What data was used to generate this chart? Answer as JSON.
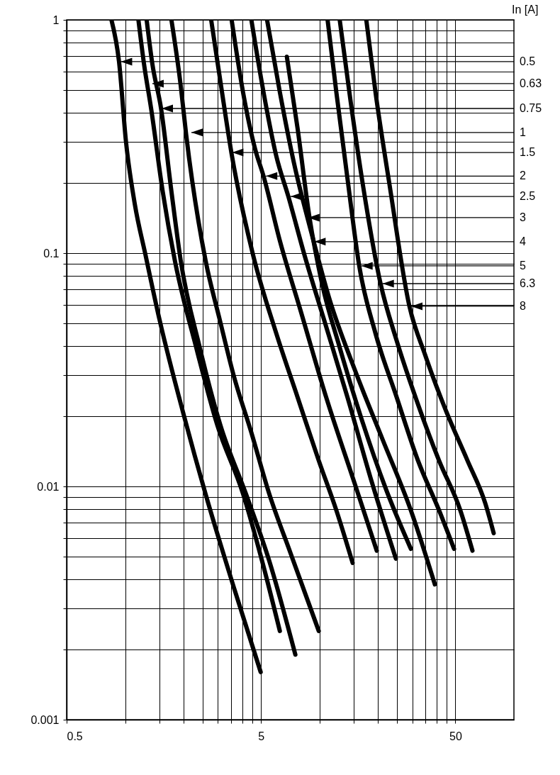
{
  "chart_data": {
    "type": "line",
    "log": "xy",
    "grid": true,
    "xlim": [
      0.5,
      100
    ],
    "ylim": [
      0.001,
      1
    ],
    "xticks": [
      0.5,
      {
        "value": 1,
        "label": null
      },
      {
        "value": 1.5,
        "label": null
      },
      {
        "value": 2,
        "label": null
      },
      {
        "value": 2.5,
        "label": null
      },
      {
        "value": 3,
        "label": null
      },
      {
        "value": 3.5,
        "label": null
      },
      {
        "value": 4,
        "label": null
      },
      {
        "value": 4.5,
        "label": null
      },
      5,
      {
        "value": 10,
        "label": null
      },
      {
        "value": 15,
        "label": null
      },
      {
        "value": 20,
        "label": null
      },
      {
        "value": 25,
        "label": null
      },
      {
        "value": 30,
        "label": null
      },
      {
        "value": 35,
        "label": null
      },
      {
        "value": 40,
        "label": null
      },
      {
        "value": 45,
        "label": null
      },
      50
    ],
    "yticks": [
      0.001,
      {
        "value": 0.002,
        "label": null
      },
      {
        "value": 0.003,
        "label": null
      },
      {
        "value": 0.004,
        "label": null
      },
      {
        "value": 0.005,
        "label": null
      },
      {
        "value": 0.006,
        "label": null
      },
      {
        "value": 0.007,
        "label": null
      },
      {
        "value": 0.008,
        "label": null
      },
      {
        "value": 0.009,
        "label": null
      },
      0.01,
      {
        "value": 0.02,
        "label": null
      },
      {
        "value": 0.03,
        "label": null
      },
      {
        "value": 0.04,
        "label": null
      },
      {
        "value": 0.05,
        "label": null
      },
      {
        "value": 0.06,
        "label": null
      },
      {
        "value": 0.07,
        "label": null
      },
      {
        "value": 0.08,
        "label": null
      },
      {
        "value": 0.09,
        "label": null
      },
      0.1,
      {
        "value": 0.2,
        "label": null
      },
      {
        "value": 0.3,
        "label": null
      },
      {
        "value": 0.4,
        "label": null
      },
      {
        "value": 0.5,
        "label": null
      },
      {
        "value": 0.6,
        "label": null
      },
      {
        "value": 0.7,
        "label": null
      },
      {
        "value": 0.8,
        "label": null
      },
      {
        "value": 0.9,
        "label": null
      },
      1
    ],
    "series": [
      {
        "color": "#000000",
        "x": [
          0.85,
          0.93,
          1.01,
          1.12,
          1.27,
          1.5,
          2.01,
          2.59,
          3.62,
          4.98
        ],
        "values": [
          1,
          0.662,
          0.3,
          0.163,
          0.099,
          0.0522,
          0.02,
          0.0093,
          0.0037,
          0.0016
        ]
      },
      {
        "color": "#000000",
        "x": [
          1.17,
          1.25,
          1.36,
          1.56,
          1.8,
          2.32,
          2.98,
          4.04,
          5.06,
          6.25
        ],
        "values": [
          1,
          0.648,
          0.417,
          0.184,
          0.0933,
          0.0394,
          0.0183,
          0.0093,
          0.0048,
          0.0024
        ]
      },
      {
        "color": "#000000",
        "x": [
          1.29,
          1.38,
          1.53,
          1.73,
          1.93,
          2.42,
          3.09,
          4.18,
          5.51,
          7.51
        ],
        "values": [
          1,
          0.648,
          0.417,
          0.184,
          0.0933,
          0.0394,
          0.0183,
          0.0093,
          0.0048,
          0.0019
        ]
      },
      {
        "color": "#000000",
        "x": [
          1.73,
          1.93,
          2.06,
          2.59,
          3.06,
          3.62,
          4.46,
          5.51,
          7.08,
          9.91
        ],
        "values": [
          1,
          0.525,
          0.322,
          0.0933,
          0.0522,
          0.0298,
          0.017,
          0.0093,
          0.0052,
          0.0024
        ]
      },
      {
        "color": "#000000",
        "x": [
          2.77,
          3.11,
          3.53,
          4.54,
          5.99,
          7.7,
          9.91,
          12.2,
          14.8
        ],
        "values": [
          1,
          0.525,
          0.266,
          0.099,
          0.0453,
          0.0242,
          0.0129,
          0.0079,
          0.0047
        ]
      },
      {
        "color": "#000000",
        "x": [
          3.53,
          4.04,
          4.66,
          5.15,
          6.25,
          8.03,
          10.8,
          15.1,
          19.7
        ],
        "values": [
          1,
          0.49,
          0.28,
          0.214,
          0.113,
          0.0559,
          0.0242,
          0.0104,
          0.0053
        ]
      },
      {
        "color": "#000000",
        "x": [
          4.46,
          5.15,
          5.99,
          6.91,
          8.37,
          10.8,
          13.9,
          18.6,
          24.7
        ],
        "values": [
          1,
          0.49,
          0.261,
          0.175,
          0.098,
          0.0486,
          0.0242,
          0.0104,
          0.0049
        ]
      },
      {
        "color": "#000000",
        "x": [
          6.79,
          7.7,
          8.88,
          10.3,
          12.7,
          16.4,
          22,
          29.5
        ],
        "values": [
          0.695,
          0.345,
          0.142,
          0.074,
          0.0394,
          0.0196,
          0.0097,
          0.0054
        ]
      },
      {
        "color": "#000000",
        "x": [
          5.37,
          6.25,
          7.39,
          9.11,
          11.2,
          15.1,
          21.1,
          29.5,
          39.2
        ],
        "values": [
          1,
          0.49,
          0.243,
          0.121,
          0.0643,
          0.032,
          0.0159,
          0.0079,
          0.0038
        ]
      },
      {
        "color": "#000000",
        "x": [
          11,
          12.2,
          13.9,
          16,
          19.4,
          24.9,
          32.1,
          41.2,
          49.2
        ],
        "values": [
          1,
          0.49,
          0.211,
          0.0882,
          0.0453,
          0.0242,
          0.0129,
          0.0079,
          0.0054
        ]
      },
      {
        "color": "#000000",
        "x": [
          12.7,
          14.4,
          16.7,
          20.6,
          24.9,
          32.1,
          41.2,
          53,
          61.2
        ],
        "values": [
          1,
          0.457,
          0.197,
          0.074,
          0.0423,
          0.0225,
          0.0129,
          0.0079,
          0.0053
        ]
      },
      {
        "color": "#000000",
        "x": [
          17.4,
          19.4,
          22.9,
          29,
          34.9,
          44.8,
          57.7,
          71.1,
          78.7
        ],
        "values": [
          1,
          0.49,
          0.197,
          0.0592,
          0.0367,
          0.021,
          0.0129,
          0.0085,
          0.0063
        ]
      }
    ],
    "annotations": [
      "In [A]",
      {
        "text": "0.5",
        "x": 0.95,
        "y": 0.662
      },
      {
        "text": "0.63",
        "x": 1.38,
        "y": 0.533
      },
      {
        "text": "0.75",
        "x": 1.54,
        "y": 0.417
      },
      {
        "text": "1",
        "x": 2.19,
        "y": 0.329
      },
      {
        "text": "1.5",
        "x": 3.55,
        "y": 0.27
      },
      {
        "text": "2",
        "x": 5.3,
        "y": 0.214
      },
      {
        "text": "2.5",
        "x": 7.1,
        "y": 0.175
      },
      {
        "text": "3",
        "x": 8.74,
        "y": 0.142
      },
      {
        "text": "4",
        "x": 9.4,
        "y": 0.112
      },
      {
        "text": "5",
        "x": 16.4,
        "y": 0.0882
      },
      {
        "text": "6.3",
        "x": 21.1,
        "y": 0.074
      },
      {
        "text": "8",
        "x": 29.6,
        "y": 0.0592
      }
    ]
  }
}
